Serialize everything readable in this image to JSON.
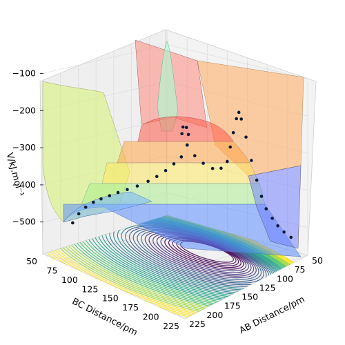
{
  "chart_data": {
    "type": "surface-3d",
    "title": "",
    "xlabel": "AB Distance/pm",
    "ylabel": "BC Distance/pm",
    "zlabel": "V/kJ.mol⁻¹",
    "x_ticks": [
      "50",
      "75",
      "100",
      "125",
      "150",
      "175",
      "200",
      "225"
    ],
    "y_ticks": [
      "50",
      "75",
      "100",
      "125",
      "150",
      "175",
      "200",
      "225"
    ],
    "z_ticks": [
      "−100",
      "−200",
      "−300",
      "−400",
      "−500"
    ],
    "xlim": [
      50,
      230
    ],
    "ylim": [
      50,
      230
    ],
    "zlim": [
      -560,
      -60
    ],
    "grid": true,
    "contour_colormap": "viridis",
    "surface_colormap": "jet (alpha)",
    "trajectory_points": [
      {
        "ab": 75,
        "bc": 215,
        "v": -470
      },
      {
        "ab": 74,
        "bc": 205,
        "v": -452
      },
      {
        "ab": 74,
        "bc": 195,
        "v": -440
      },
      {
        "ab": 75,
        "bc": 185,
        "v": -432
      },
      {
        "ab": 76,
        "bc": 175,
        "v": -428
      },
      {
        "ab": 78,
        "bc": 165,
        "v": -424
      },
      {
        "ab": 80,
        "bc": 155,
        "v": -420
      },
      {
        "ab": 83,
        "bc": 145,
        "v": -416
      },
      {
        "ab": 87,
        "bc": 135,
        "v": -410
      },
      {
        "ab": 92,
        "bc": 125,
        "v": -400
      },
      {
        "ab": 97,
        "bc": 118,
        "v": -388
      },
      {
        "ab": 103,
        "bc": 112,
        "v": -372
      },
      {
        "ab": 110,
        "bc": 108,
        "v": -352
      },
      {
        "ab": 116,
        "bc": 104,
        "v": -332
      },
      {
        "ab": 120,
        "bc": 100,
        "v": -300
      },
      {
        "ab": 118,
        "bc": 96,
        "v": -275
      },
      {
        "ab": 112,
        "bc": 92,
        "v": -262
      },
      {
        "ab": 104,
        "bc": 88,
        "v": -268
      },
      {
        "ab": 100,
        "bc": 85,
        "v": -290
      },
      {
        "ab": 104,
        "bc": 82,
        "v": -320
      },
      {
        "ab": 112,
        "bc": 80,
        "v": -345
      },
      {
        "ab": 122,
        "bc": 79,
        "v": -360
      },
      {
        "ab": 133,
        "bc": 78,
        "v": -368
      },
      {
        "ab": 143,
        "bc": 77,
        "v": -362
      },
      {
        "ab": 150,
        "bc": 76,
        "v": -340
      },
      {
        "ab": 153,
        "bc": 75,
        "v": -300
      },
      {
        "ab": 156,
        "bc": 74,
        "v": -260
      },
      {
        "ab": 160,
        "bc": 74,
        "v": -220
      },
      {
        "ab": 164,
        "bc": 75,
        "v": -200
      },
      {
        "ab": 168,
        "bc": 76,
        "v": -215
      },
      {
        "ab": 174,
        "bc": 76,
        "v": -260
      },
      {
        "ab": 180,
        "bc": 75,
        "v": -320
      },
      {
        "ab": 186,
        "bc": 74,
        "v": -370
      },
      {
        "ab": 192,
        "bc": 74,
        "v": -410
      },
      {
        "ab": 198,
        "bc": 74,
        "v": -440
      },
      {
        "ab": 205,
        "bc": 73,
        "v": -462
      },
      {
        "ab": 212,
        "bc": 73,
        "v": -478
      },
      {
        "ab": 220,
        "bc": 73,
        "v": -490
      },
      {
        "ab": 228,
        "bc": 72,
        "v": -500
      }
    ],
    "colors": {
      "trajectory_point": "#0b1a33",
      "pane": "#f2f2f2",
      "grid": "#d9d9d9"
    }
  }
}
